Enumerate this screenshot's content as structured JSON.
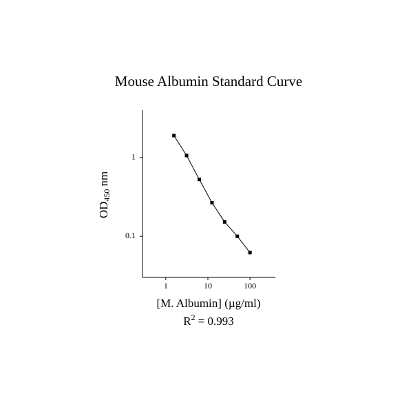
{
  "chart_data": {
    "type": "line",
    "title": "Mouse Albumin Standard Curve",
    "x_label": "[M. Albumin] (µg/ml)",
    "y_label": {
      "main": "OD",
      "subscript": "450",
      "unit": "nm"
    },
    "annotation": {
      "main": "R",
      "superscript": "2",
      "rest": "= 0.993"
    },
    "x": [
      1.5625,
      3.125,
      6.25,
      12.5,
      25,
      50,
      100
    ],
    "values": [
      1.9,
      1.06,
      0.527,
      0.267,
      0.152,
      0.1,
      0.062
    ],
    "color": "#000000",
    "markers": true,
    "xscale": "log",
    "yscale": "log",
    "xlim": [
      0.28,
      400
    ],
    "ylim": [
      0.03,
      4
    ],
    "xticks": [
      1,
      10,
      100
    ],
    "yticks": [
      0.1,
      1
    ],
    "grid": false
  }
}
